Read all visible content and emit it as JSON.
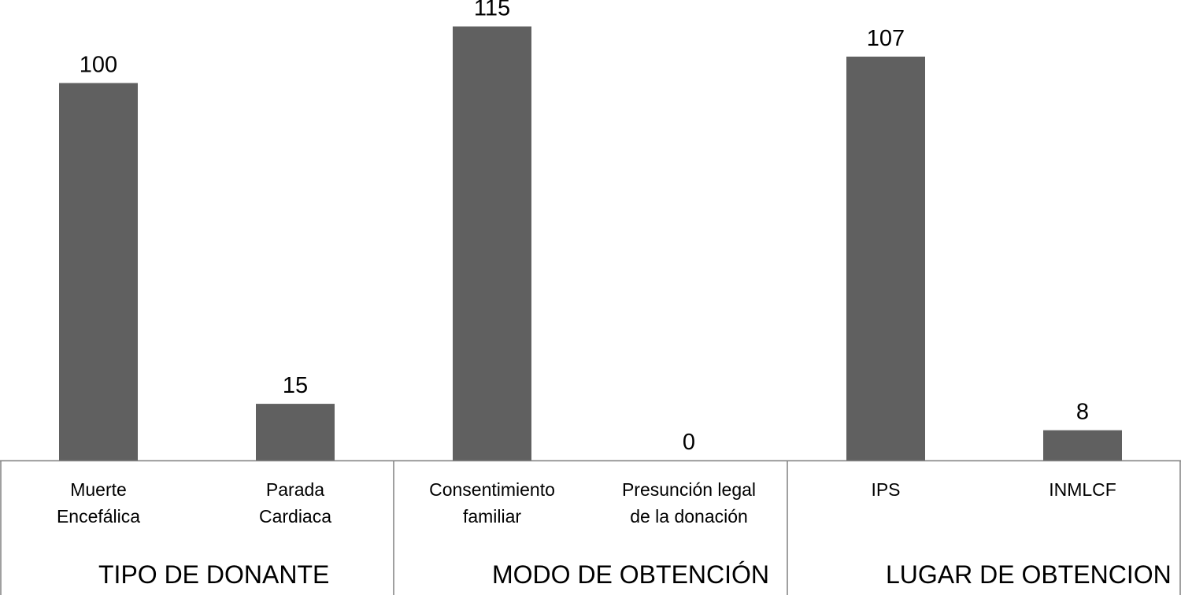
{
  "chart_data": {
    "type": "bar",
    "categories": [
      "Muerte\nEncefálica",
      "Parada\nCardiaca",
      "Consentimiento\nfamiliar",
      "Presunción legal\nde la donación",
      "IPS",
      "INMLCF"
    ],
    "values": [
      100,
      15,
      115,
      0,
      107,
      8
    ],
    "groups": [
      "TIPO DE DONANTE",
      "MODO DE OBTENCIÓN",
      "LUGAR DE OBTENCION"
    ],
    "color": "#606060",
    "ylim": [
      0,
      122
    ]
  }
}
